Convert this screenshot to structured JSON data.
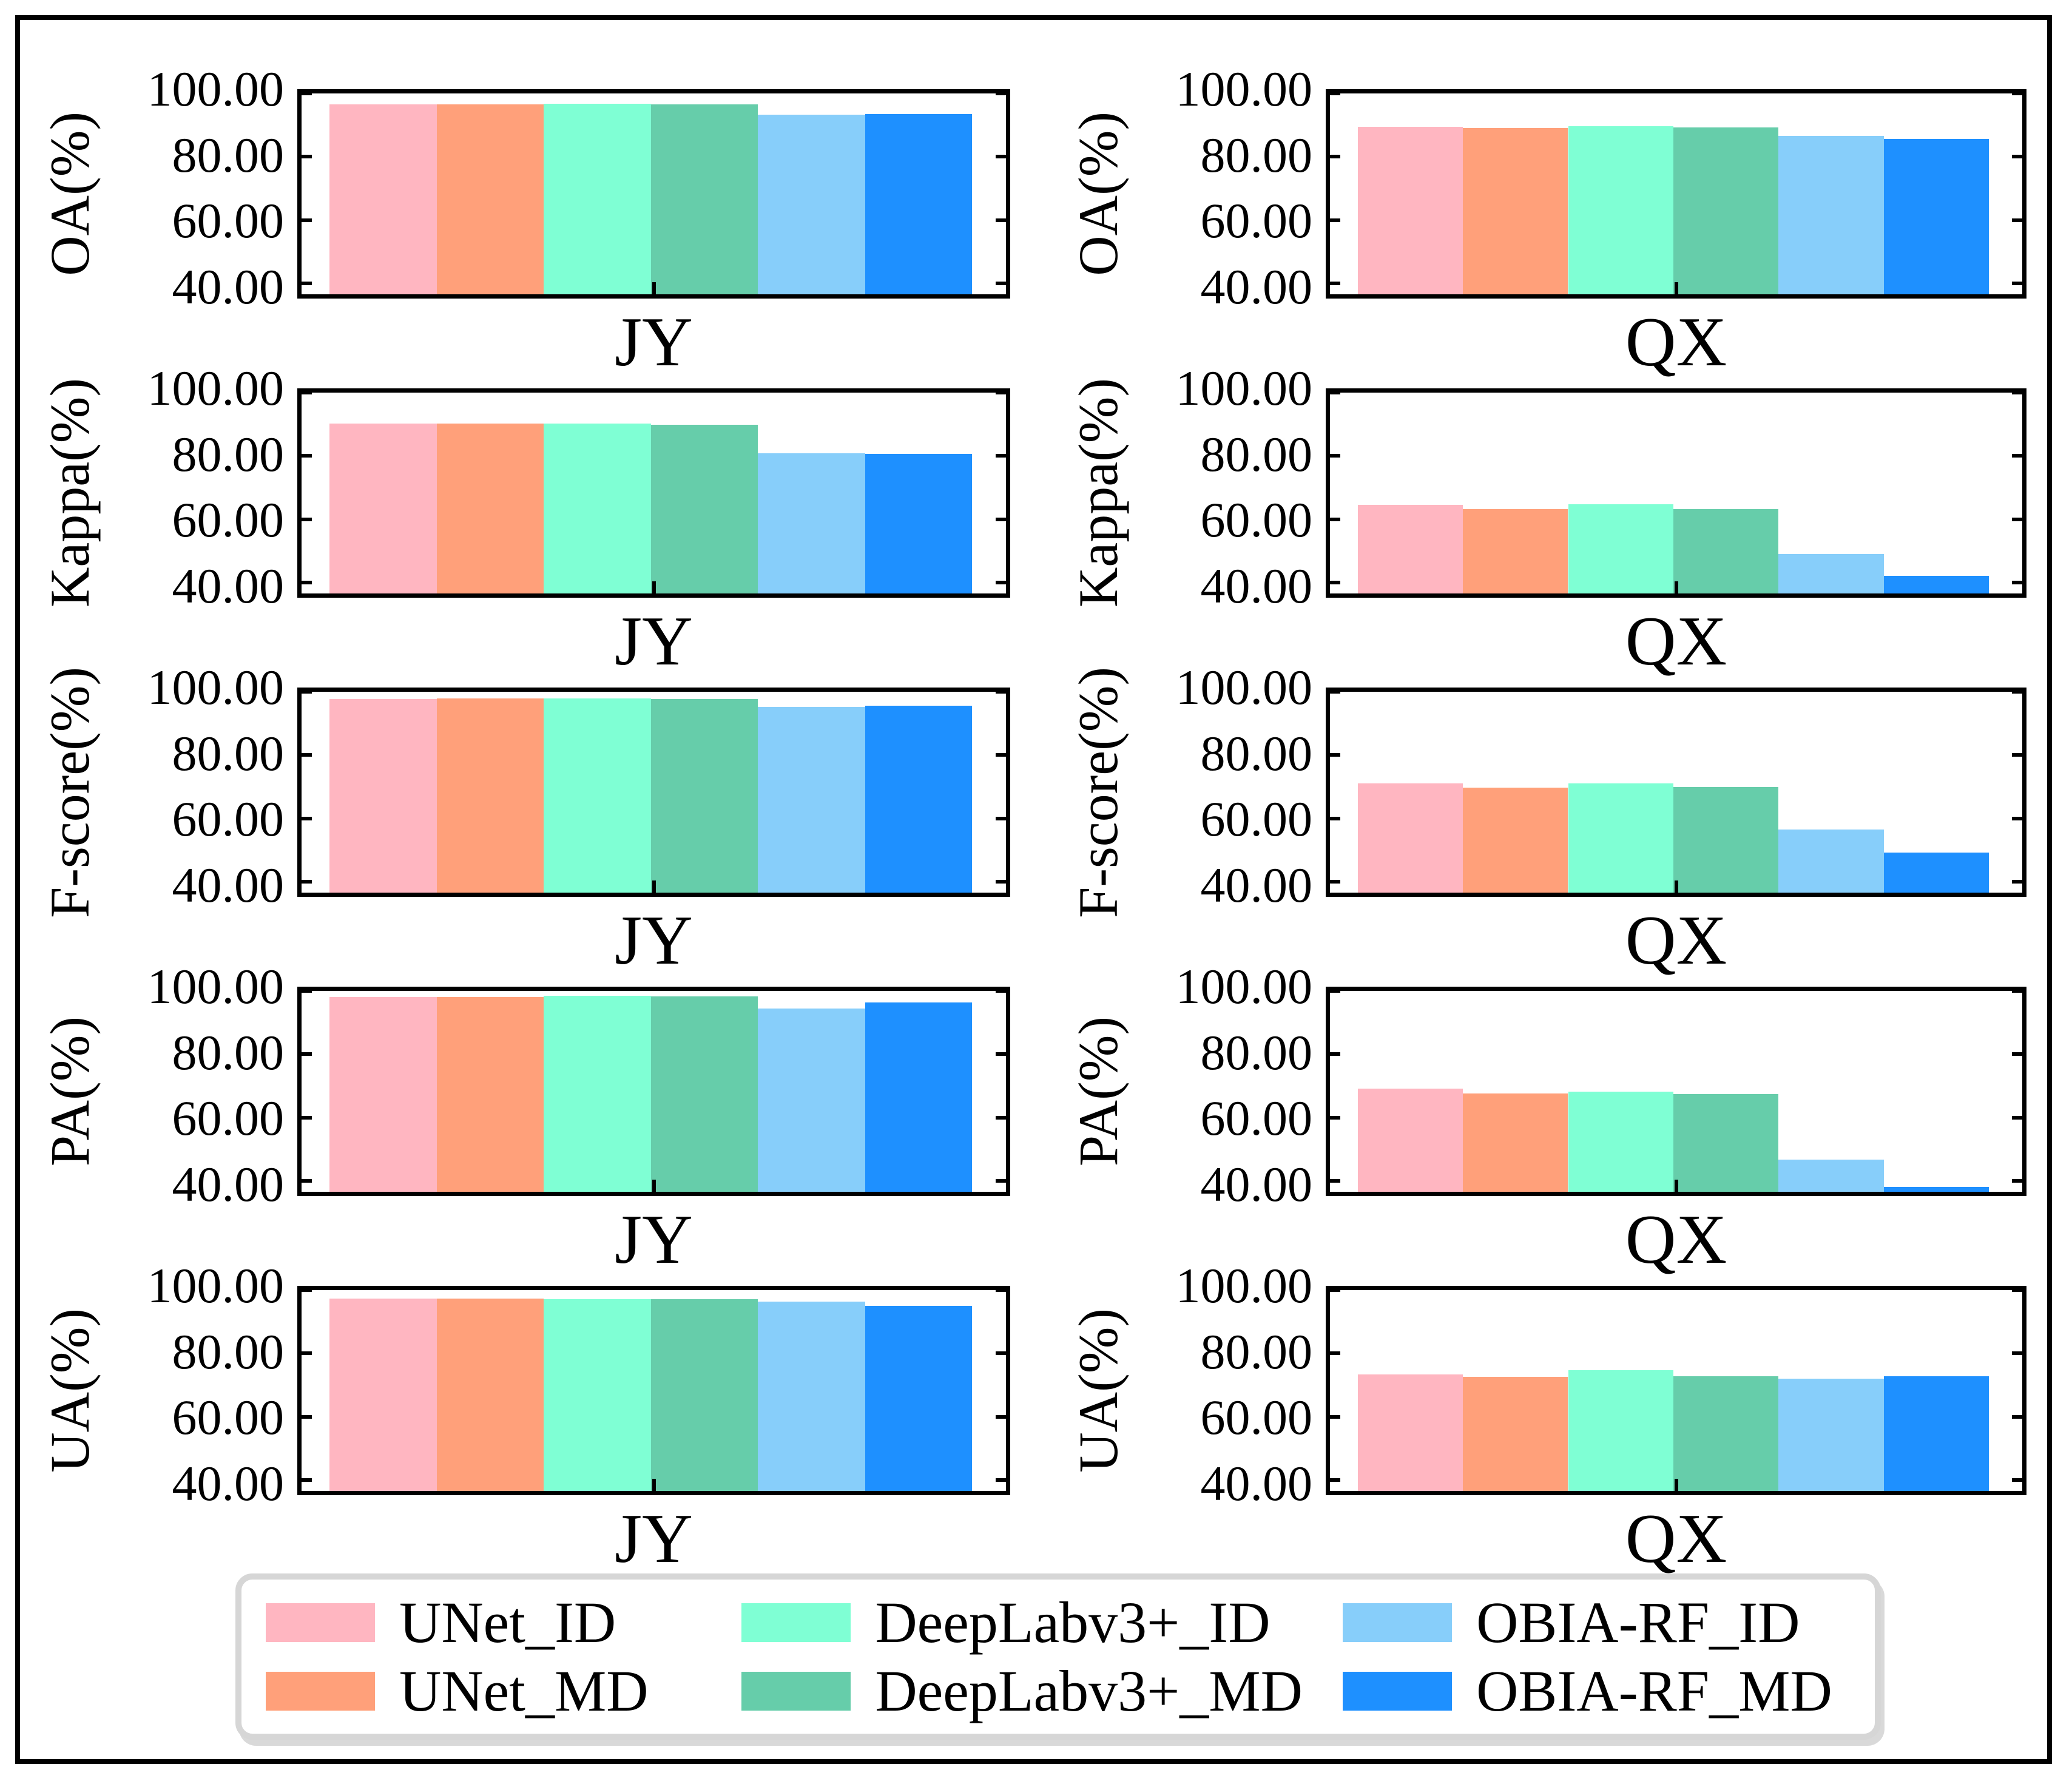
{
  "figure": {
    "background_color": "#ffffff",
    "frame_color": "#000000",
    "sites": [
      "JY",
      "QX"
    ],
    "metrics": [
      "OA",
      "Kappa",
      "F-score",
      "PA",
      "UA"
    ]
  },
  "axis": {
    "tick_labels": [
      "100.00",
      "80.00",
      "60.00",
      "40.00"
    ],
    "tick_values": [
      100,
      80,
      60,
      40
    ],
    "y_min": 36.5,
    "y_max": 100
  },
  "legend": {
    "border_color": "#d6d6d6",
    "items": [
      {
        "label": "UNet_ID",
        "color": "#FFB6C1"
      },
      {
        "label": "UNet_MD",
        "color": "#FFA07A"
      },
      {
        "label": "DeepLabv3+_ID",
        "color": "#7FFFD4"
      },
      {
        "label": "DeepLabv3+_MD",
        "color": "#66CDAA"
      },
      {
        "label": "OBIA-RF_ID",
        "color": "#87CEFA"
      },
      {
        "label": "OBIA-RF_MD",
        "color": "#1E90FF"
      }
    ]
  },
  "chart_data": [
    {
      "type": "bar",
      "metric": "OA",
      "ylabel": "OA(%)",
      "xlabel": "JY",
      "categories": [
        "JY"
      ],
      "ylim": [
        36.5,
        100
      ],
      "yticks": [
        40,
        60,
        80,
        100
      ],
      "grid": false,
      "series": [
        {
          "name": "UNet_ID",
          "value": 96.6
        },
        {
          "name": "UNet_MD",
          "value": 96.6
        },
        {
          "name": "DeepLabv3+_ID",
          "value": 96.8
        },
        {
          "name": "DeepLabv3+_MD",
          "value": 96.6
        },
        {
          "name": "OBIA-RF_ID",
          "value": 93.3
        },
        {
          "name": "OBIA-RF_MD",
          "value": 93.5
        }
      ]
    },
    {
      "type": "bar",
      "metric": "OA",
      "ylabel": "OA(%)",
      "xlabel": "QX",
      "categories": [
        "QX"
      ],
      "ylim": [
        36.5,
        100
      ],
      "yticks": [
        40,
        60,
        80,
        100
      ],
      "grid": false,
      "series": [
        {
          "name": "UNet_ID",
          "value": 89.5
        },
        {
          "name": "UNet_MD",
          "value": 89.0
        },
        {
          "name": "DeepLabv3+_ID",
          "value": 89.7
        },
        {
          "name": "DeepLabv3+_MD",
          "value": 89.2
        },
        {
          "name": "OBIA-RF_ID",
          "value": 86.5
        },
        {
          "name": "OBIA-RF_MD",
          "value": 85.7
        }
      ]
    },
    {
      "type": "bar",
      "metric": "Kappa",
      "ylabel": "Kappa(%)",
      "xlabel": "JY",
      "categories": [
        "JY"
      ],
      "ylim": [
        36.5,
        100
      ],
      "yticks": [
        40,
        60,
        80,
        100
      ],
      "grid": false,
      "series": [
        {
          "name": "UNet_ID",
          "value": 90.2
        },
        {
          "name": "UNet_MD",
          "value": 90.2
        },
        {
          "name": "DeepLabv3+_ID",
          "value": 90.3
        },
        {
          "name": "DeepLabv3+_MD",
          "value": 89.9
        },
        {
          "name": "OBIA-RF_ID",
          "value": 80.9
        },
        {
          "name": "OBIA-RF_MD",
          "value": 80.6
        }
      ]
    },
    {
      "type": "bar",
      "metric": "Kappa",
      "ylabel": "Kappa(%)",
      "xlabel": "QX",
      "categories": [
        "QX"
      ],
      "ylim": [
        36.5,
        100
      ],
      "yticks": [
        40,
        60,
        80,
        100
      ],
      "grid": false,
      "series": [
        {
          "name": "UNet_ID",
          "value": 64.5
        },
        {
          "name": "UNet_MD",
          "value": 63.1
        },
        {
          "name": "DeepLabv3+_ID",
          "value": 64.7
        },
        {
          "name": "DeepLabv3+_MD",
          "value": 63.2
        },
        {
          "name": "OBIA-RF_ID",
          "value": 49.0
        },
        {
          "name": "OBIA-RF_MD",
          "value": 42.1
        }
      ]
    },
    {
      "type": "bar",
      "metric": "F-score",
      "ylabel": "F-score(%)",
      "xlabel": "JY",
      "categories": [
        "JY"
      ],
      "ylim": [
        36.5,
        100
      ],
      "yticks": [
        40,
        60,
        80,
        100
      ],
      "grid": false,
      "series": [
        {
          "name": "UNet_ID",
          "value": 97.7
        },
        {
          "name": "UNet_MD",
          "value": 97.8
        },
        {
          "name": "DeepLabv3+_ID",
          "value": 97.8
        },
        {
          "name": "DeepLabv3+_MD",
          "value": 97.7
        },
        {
          "name": "OBIA-RF_ID",
          "value": 95.2
        },
        {
          "name": "OBIA-RF_MD",
          "value": 95.5
        }
      ]
    },
    {
      "type": "bar",
      "metric": "F-score",
      "ylabel": "F-score(%)",
      "xlabel": "QX",
      "categories": [
        "QX"
      ],
      "ylim": [
        36.5,
        100
      ],
      "yticks": [
        40,
        60,
        80,
        100
      ],
      "grid": false,
      "series": [
        {
          "name": "UNet_ID",
          "value": 71.0
        },
        {
          "name": "UNet_MD",
          "value": 69.7
        },
        {
          "name": "DeepLabv3+_ID",
          "value": 71.0
        },
        {
          "name": "DeepLabv3+_MD",
          "value": 69.9
        },
        {
          "name": "OBIA-RF_ID",
          "value": 56.4
        },
        {
          "name": "OBIA-RF_MD",
          "value": 49.1
        }
      ]
    },
    {
      "type": "bar",
      "metric": "PA",
      "ylabel": "PA(%)",
      "xlabel": "JY",
      "categories": [
        "JY"
      ],
      "ylim": [
        36.5,
        100
      ],
      "yticks": [
        40,
        60,
        80,
        100
      ],
      "grid": false,
      "series": [
        {
          "name": "UNet_ID",
          "value": 98.0
        },
        {
          "name": "UNet_MD",
          "value": 98.1
        },
        {
          "name": "DeepLabv3+_ID",
          "value": 98.5
        },
        {
          "name": "DeepLabv3+_MD",
          "value": 98.3
        },
        {
          "name": "OBIA-RF_ID",
          "value": 94.5
        },
        {
          "name": "OBIA-RF_MD",
          "value": 96.3
        }
      ]
    },
    {
      "type": "bar",
      "metric": "PA",
      "ylabel": "PA(%)",
      "xlabel": "QX",
      "categories": [
        "QX"
      ],
      "ylim": [
        36.5,
        100
      ],
      "yticks": [
        40,
        60,
        80,
        100
      ],
      "grid": false,
      "series": [
        {
          "name": "UNet_ID",
          "value": 69.2
        },
        {
          "name": "UNet_MD",
          "value": 67.5
        },
        {
          "name": "DeepLabv3+_ID",
          "value": 68.2
        },
        {
          "name": "DeepLabv3+_MD",
          "value": 67.4
        },
        {
          "name": "OBIA-RF_ID",
          "value": 46.7
        },
        {
          "name": "OBIA-RF_MD",
          "value": 38.0
        }
      ]
    },
    {
      "type": "bar",
      "metric": "UA",
      "ylabel": "UA(%)",
      "xlabel": "JY",
      "categories": [
        "JY"
      ],
      "ylim": [
        36.5,
        100
      ],
      "yticks": [
        40,
        60,
        80,
        100
      ],
      "grid": false,
      "series": [
        {
          "name": "UNet_ID",
          "value": 97.4
        },
        {
          "name": "UNet_MD",
          "value": 97.4
        },
        {
          "name": "DeepLabv3+_ID",
          "value": 97.2
        },
        {
          "name": "DeepLabv3+_MD",
          "value": 97.1
        },
        {
          "name": "OBIA-RF_ID",
          "value": 96.4
        },
        {
          "name": "OBIA-RF_MD",
          "value": 95.0
        }
      ]
    },
    {
      "type": "bar",
      "metric": "UA",
      "ylabel": "UA(%)",
      "xlabel": "QX",
      "categories": [
        "QX"
      ],
      "ylim": [
        36.5,
        100
      ],
      "yticks": [
        40,
        60,
        80,
        100
      ],
      "grid": false,
      "series": [
        {
          "name": "UNet_ID",
          "value": 73.3
        },
        {
          "name": "UNet_MD",
          "value": 72.5
        },
        {
          "name": "DeepLabv3+_ID",
          "value": 74.6
        },
        {
          "name": "DeepLabv3+_MD",
          "value": 72.8
        },
        {
          "name": "OBIA-RF_ID",
          "value": 72.0
        },
        {
          "name": "OBIA-RF_MD",
          "value": 72.7
        }
      ]
    }
  ]
}
